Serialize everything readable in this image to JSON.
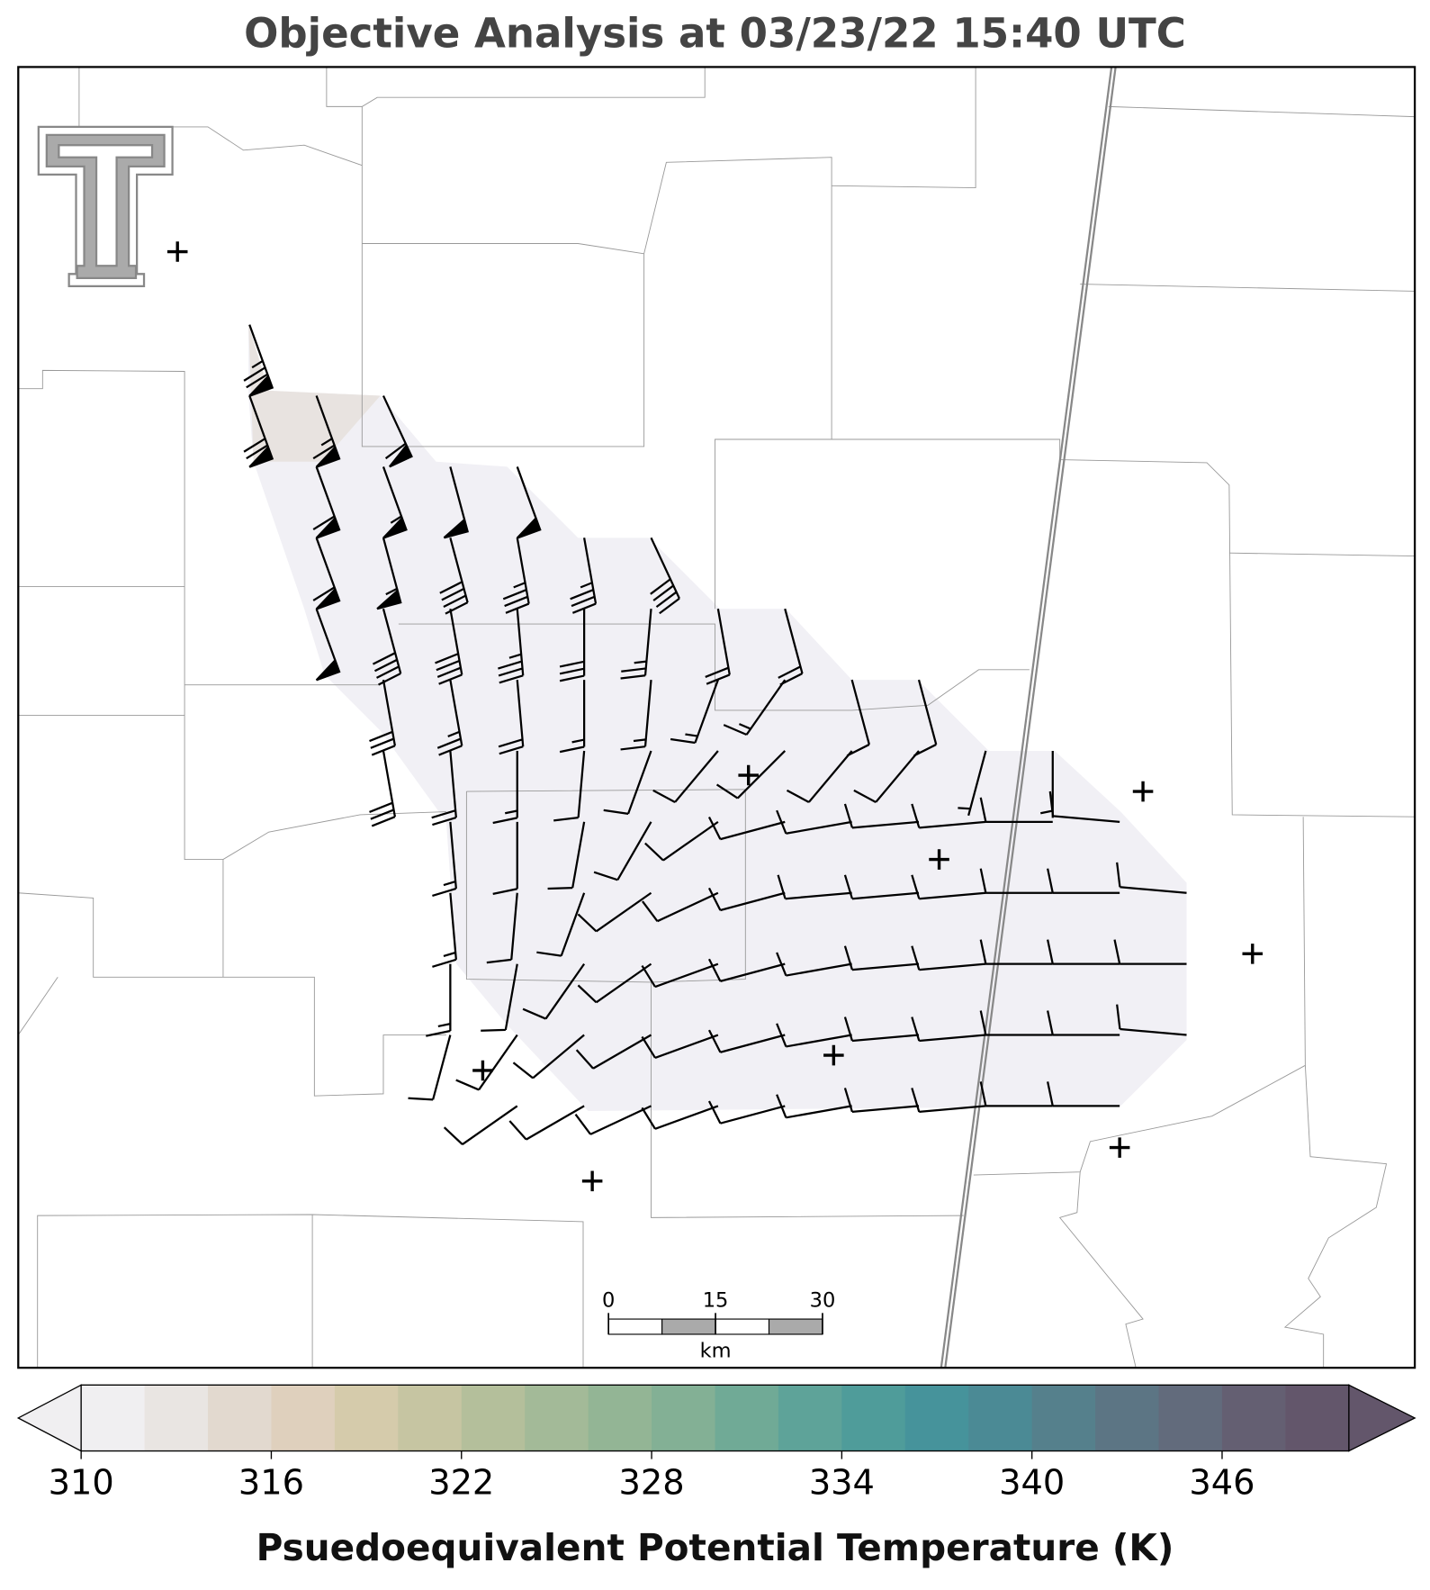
{
  "title": "Objective Analysis at 03/23/22 15:40 UTC",
  "map": {
    "wind_barbs": {
      "rows": [
        [
          [
            160,
            75
          ],
          null,
          null,
          null,
          null,
          null,
          null,
          null,
          null,
          null,
          null,
          null,
          null,
          null,
          null
        ],
        [
          [
            160,
            70
          ],
          [
            160,
            65
          ],
          [
            155,
            60
          ],
          null,
          null,
          null,
          null,
          null,
          null,
          null,
          null,
          null,
          null,
          null,
          null
        ],
        [
          null,
          [
            160,
            60
          ],
          [
            160,
            55
          ],
          [
            165,
            50
          ],
          [
            160,
            50
          ],
          null,
          null,
          null,
          null,
          null,
          null,
          null,
          null,
          null,
          null
        ],
        [
          null,
          [
            160,
            60
          ],
          [
            165,
            55
          ],
          [
            165,
            40
          ],
          [
            170,
            35
          ],
          [
            170,
            35
          ],
          [
            155,
            40
          ],
          null,
          null,
          null,
          null,
          null,
          null,
          null,
          null
        ],
        [
          null,
          [
            160,
            50
          ],
          [
            165,
            40
          ],
          [
            170,
            40
          ],
          [
            175,
            35
          ],
          [
            180,
            30
          ],
          [
            185,
            25
          ],
          [
            170,
            20
          ],
          [
            165,
            20
          ],
          null,
          null,
          null,
          null,
          null,
          null
        ],
        [
          null,
          null,
          [
            170,
            30
          ],
          [
            170,
            25
          ],
          [
            175,
            20
          ],
          [
            180,
            15
          ],
          [
            185,
            15
          ],
          [
            200,
            15
          ],
          [
            215,
            15
          ],
          [
            165,
            10
          ],
          [
            165,
            10
          ],
          null,
          null,
          null,
          null
        ],
        [
          null,
          null,
          [
            170,
            30
          ],
          [
            175,
            20
          ],
          [
            180,
            15
          ],
          [
            185,
            10
          ],
          [
            200,
            10
          ],
          [
            220,
            10
          ],
          [
            225,
            10
          ],
          [
            220,
            10
          ],
          [
            220,
            10
          ],
          [
            195,
            5
          ],
          [
            180,
            5
          ],
          null,
          null
        ],
        [
          null,
          null,
          null,
          [
            175,
            15
          ],
          [
            180,
            10
          ],
          [
            190,
            10
          ],
          [
            210,
            10
          ],
          [
            235,
            10
          ],
          [
            255,
            10
          ],
          [
            260,
            10
          ],
          [
            265,
            10
          ],
          [
            265,
            10
          ],
          [
            270,
            10
          ],
          [
            275,
            10
          ],
          null
        ],
        [
          null,
          null,
          null,
          [
            175,
            15
          ],
          [
            185,
            10
          ],
          [
            200,
            10
          ],
          [
            235,
            10
          ],
          [
            245,
            10
          ],
          [
            255,
            10
          ],
          [
            265,
            10
          ],
          [
            265,
            10
          ],
          [
            265,
            10
          ],
          [
            270,
            10
          ],
          [
            270,
            10
          ],
          [
            275,
            10
          ]
        ],
        [
          null,
          null,
          null,
          [
            180,
            15
          ],
          [
            190,
            10
          ],
          [
            215,
            10
          ],
          [
            235,
            10
          ],
          [
            250,
            10
          ],
          [
            255,
            10
          ],
          [
            260,
            10
          ],
          [
            265,
            10
          ],
          [
            265,
            10
          ],
          [
            270,
            10
          ],
          [
            270,
            10
          ],
          [
            270,
            10
          ]
        ],
        [
          null,
          null,
          null,
          [
            195,
            10
          ],
          [
            215,
            10
          ],
          [
            230,
            10
          ],
          [
            240,
            10
          ],
          [
            250,
            10
          ],
          [
            255,
            10
          ],
          [
            260,
            10
          ],
          [
            265,
            10
          ],
          [
            265,
            10
          ],
          [
            270,
            10
          ],
          [
            270,
            10
          ],
          [
            275,
            10
          ]
        ],
        [
          null,
          null,
          null,
          null,
          [
            235,
            10
          ],
          [
            240,
            10
          ],
          [
            245,
            10
          ],
          [
            250,
            10
          ],
          [
            255,
            10
          ],
          [
            260,
            10
          ],
          [
            265,
            10
          ],
          [
            265,
            10
          ],
          [
            270,
            10
          ],
          [
            270,
            10
          ],
          null
        ]
      ]
    }
  },
  "scale_bar": {
    "ticks": [
      0,
      15,
      30
    ],
    "unit": "km"
  },
  "colorbar": {
    "label": "Psuedoequivalent Potential Temperature (K)",
    "lim": [
      310,
      350
    ],
    "ticks": [
      310,
      316,
      322,
      328,
      334,
      340,
      346
    ],
    "extend": "both",
    "colors": [
      "#f0eff1",
      "#e9e5e2",
      "#e2d9cf",
      "#dfd0bd",
      "#d5cbab",
      "#c6c5a2",
      "#b4bf9b",
      "#a3ba98",
      "#93b595",
      "#83b095",
      "#70aa96",
      "#5ea399",
      "#4f9c9a",
      "#46939b",
      "#4b8a95",
      "#55808c",
      "#5c7584",
      "#626b7c",
      "#645f72",
      "#63566b"
    ]
  }
}
